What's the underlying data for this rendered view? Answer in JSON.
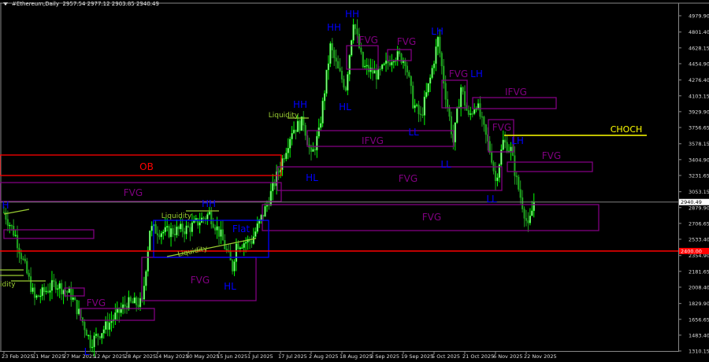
{
  "header": {
    "symbol": "#Ethereum,Daily",
    "ohlc": "2957.54 2977.12 2903.85 2940.49"
  },
  "colors": {
    "background": "#000000",
    "candle_up": "#00ff00",
    "candle_fill": "#90ee90",
    "candle_down": "#1fa01f",
    "fvg": "#800080",
    "ob": "#ff0000",
    "structure": "#0000ff",
    "liquidity": "#9acd32",
    "choch": "#ffff00",
    "level_line": "#ff0000",
    "current_price_line": "#808080"
  },
  "chart_data": {
    "type": "candlestick",
    "title": "",
    "ylim": [
      1310.15,
      4979.9
    ],
    "grid": false,
    "price_ticks": [
      "4979.90",
      "4801.40",
      "4628.15",
      "4454.90",
      "4276.40",
      "4103.15",
      "3929.90",
      "3756.65",
      "3578.15",
      "3404.90",
      "3231.65",
      "3053.15",
      "2879.90",
      "2706.65",
      "2533.40",
      "2354.90",
      "2181.65",
      "2008.40",
      "1829.90",
      "1656.65",
      "1483.40",
      "1310.15"
    ],
    "date_ticks": [
      "23 Feb 2025",
      "11 Mar 2025",
      "27 Mar 2025",
      "12 Apr 2025",
      "28 Apr 2025",
      "14 May 2025",
      "30 May 2025",
      "15 Jun 2025",
      "1 Jul 2025",
      "17 Jul 2025",
      "2 Aug 2025",
      "18 Aug 2025",
      "3 Sep 2025",
      "19 Sep 2025",
      "5 Oct 2025",
      "21 Oct 2025",
      "6 Nov 2025",
      "22 Nov 2025"
    ],
    "current_price": "2940.49",
    "level_price": "2400.00",
    "approx_close_path": [
      [
        "2025-02-23",
        2830
      ],
      [
        "2025-03-01",
        2570
      ],
      [
        "2025-03-11",
        1880
      ],
      [
        "2025-03-22",
        2050
      ],
      [
        "2025-03-30",
        1920
      ],
      [
        "2025-04-07",
        1530
      ],
      [
        "2025-04-09",
        1400
      ],
      [
        "2025-04-19",
        1620
      ],
      [
        "2025-04-28",
        1830
      ],
      [
        "2025-05-06",
        1830
      ],
      [
        "2025-05-10",
        2650
      ],
      [
        "2025-05-18",
        2610
      ],
      [
        "2025-05-30",
        2650
      ],
      [
        "2025-06-10",
        2810
      ],
      [
        "2025-06-16",
        2570
      ],
      [
        "2025-06-22",
        2220
      ],
      [
        "2025-06-24",
        2480
      ],
      [
        "2025-07-02",
        2520
      ],
      [
        "2025-07-10",
        2910
      ],
      [
        "2025-07-17",
        3340
      ],
      [
        "2025-07-23",
        3730
      ],
      [
        "2025-07-29",
        3820
      ],
      [
        "2025-08-02",
        3430
      ],
      [
        "2025-08-06",
        3690
      ],
      [
        "2025-08-12",
        4640
      ],
      [
        "2025-08-16",
        4380
      ],
      [
        "2025-08-20",
        4200
      ],
      [
        "2025-08-24",
        4940
      ],
      [
        "2025-08-29",
        4420
      ],
      [
        "2025-09-06",
        4330
      ],
      [
        "2025-09-14",
        4550
      ],
      [
        "2025-09-20",
        4500
      ],
      [
        "2025-09-24",
        4030
      ],
      [
        "2025-09-28",
        3860
      ],
      [
        "2025-10-03",
        4290
      ],
      [
        "2025-10-07",
        4720
      ],
      [
        "2025-10-11",
        4120
      ],
      [
        "2025-10-15",
        3600
      ],
      [
        "2025-10-19",
        4200
      ],
      [
        "2025-10-23",
        3860
      ],
      [
        "2025-10-27",
        4030
      ],
      [
        "2025-10-31",
        3730
      ],
      [
        "2025-11-04",
        3430
      ],
      [
        "2025-11-06",
        3170
      ],
      [
        "2025-11-10",
        3600
      ],
      [
        "2025-11-14",
        3510
      ],
      [
        "2025-11-17",
        3170
      ],
      [
        "2025-11-21",
        2830
      ],
      [
        "2025-11-23",
        2650
      ],
      [
        "2025-11-26",
        2940
      ]
    ],
    "zones": [
      {
        "label": "OB",
        "kind": "ob"
      },
      {
        "label": "FVG",
        "kind": "fvg"
      },
      {
        "label": "FVG",
        "kind": "fvg"
      },
      {
        "label": "IFVG",
        "kind": "fvg"
      },
      {
        "label": "FVG",
        "kind": "fvg"
      },
      {
        "label": "IFVG",
        "kind": "fvg"
      },
      {
        "label": "FVG",
        "kind": "fvg"
      },
      {
        "label": "FVG",
        "kind": "fvg"
      },
      {
        "label": "IFVG",
        "kind": "fvg"
      },
      {
        "label": "FVG",
        "kind": "fvg"
      },
      {
        "label": "FVG",
        "kind": "fvg"
      },
      {
        "label": "",
        "kind": "fvg"
      },
      {
        "label": "",
        "kind": "fvg"
      },
      {
        "label": "FVG",
        "kind": "fvg"
      },
      {
        "label": "FVG",
        "kind": "fvg"
      },
      {
        "label": "Flat",
        "kind": "structure"
      }
    ],
    "structure_labels": [
      "HH",
      "HH",
      "LH",
      "HL",
      "HH",
      "HL",
      "LL",
      "LL",
      "LH",
      "LH",
      "LL",
      "HH",
      "HL",
      "H",
      "L"
    ],
    "liquidity_labels": [
      "Liquidity",
      "Liquidity",
      "Liquidity",
      "idity"
    ],
    "choch_label": "CHOCH"
  }
}
